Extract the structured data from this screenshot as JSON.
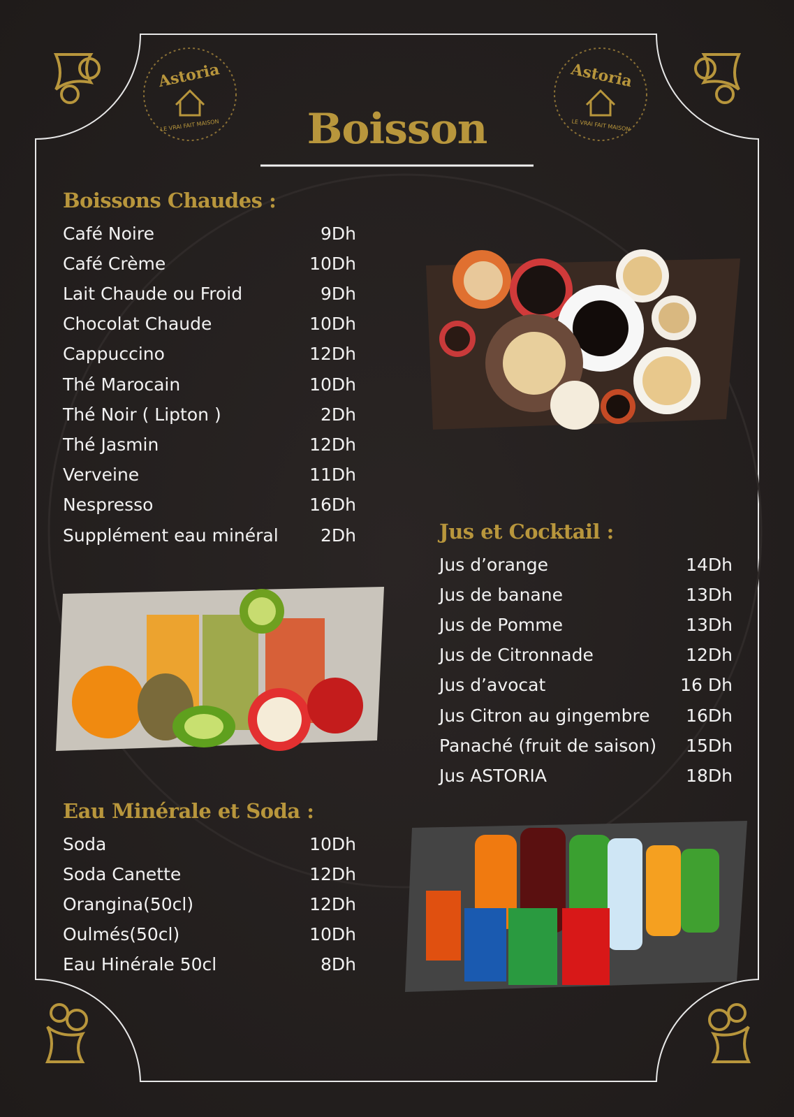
{
  "logo": {
    "name": "Astoria",
    "tagline": "LE VRAI FAIT MAISON"
  },
  "title": "Boisson",
  "sections": [
    {
      "heading": "Boissons Chaudes :",
      "items": [
        {
          "name": "Café Noire",
          "price": "9Dh"
        },
        {
          "name": "Café Crème",
          "price": "10Dh"
        },
        {
          "name": "Lait Chaude ou Froid",
          "price": "9Dh"
        },
        {
          "name": "Chocolat Chaude",
          "price": "10Dh"
        },
        {
          "name": "Cappuccino",
          "price": "12Dh"
        },
        {
          "name": "Thé Marocain",
          "price": "10Dh"
        },
        {
          "name": "Thé Noir ( Lipton )",
          "price": "2Dh"
        },
        {
          "name": "Thé Jasmin",
          "price": "12Dh"
        },
        {
          "name": "Verveine",
          "price": "11Dh"
        },
        {
          "name": "Nespresso",
          "price": "16Dh"
        },
        {
          "name": "Supplément eau minéral",
          "price": "2Dh"
        }
      ]
    },
    {
      "heading": "Jus et Cocktail :",
      "items": [
        {
          "name": "Jus d’orange",
          "price": "14Dh"
        },
        {
          "name": "Jus de banane",
          "price": "13Dh"
        },
        {
          "name": "Jus de Pomme",
          "price": "13Dh"
        },
        {
          "name": "Jus de Citronnade",
          "price": "12Dh"
        },
        {
          "name": "Jus d’avocat",
          "price": "16 Dh"
        },
        {
          "name": "Jus Citron au gingembre",
          "price": "16Dh"
        },
        {
          "name": "Panaché (fruit de saison)",
          "price": "15Dh"
        },
        {
          "name": "Jus ASTORIA",
          "price": "18Dh"
        }
      ]
    },
    {
      "heading": "Eau Minérale et Soda :",
      "items": [
        {
          "name": "Soda",
          "price": "10Dh"
        },
        {
          "name": "Soda Canette",
          "price": "12Dh"
        },
        {
          "name": "Orangina(50cl)",
          "price": "12Dh"
        },
        {
          "name": "Oulmés(50cl)",
          "price": "10Dh"
        },
        {
          "name": "Eau Hinérale 50cl",
          "price": "8Dh"
        }
      ]
    }
  ]
}
